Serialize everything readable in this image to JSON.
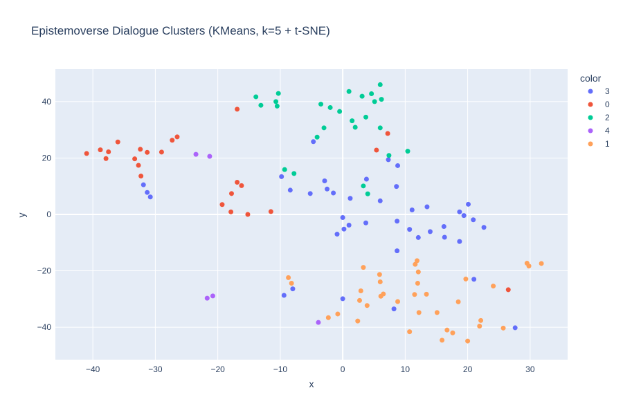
{
  "chart_data": {
    "type": "scatter",
    "title": "Epistemoverse Dialogue Clusters (KMeans, k=5 + t-SNE)",
    "xlabel": "x",
    "ylabel": "y",
    "xlim": [
      -46,
      36
    ],
    "ylim": [
      -51.5,
      51.5
    ],
    "x_ticks": [
      -40,
      -30,
      -20,
      -10,
      0,
      10,
      20,
      30
    ],
    "x_tick_labels": [
      "−40",
      "−30",
      "−20",
      "−10",
      "0",
      "10",
      "20",
      "30"
    ],
    "y_ticks": [
      -40,
      -20,
      0,
      20,
      40
    ],
    "y_tick_labels": [
      "−40",
      "−20",
      "0",
      "20",
      "40"
    ],
    "grid": true,
    "legend": {
      "title": "color",
      "placement": "right"
    },
    "colors": {
      "plot_background": "#E5ECF6",
      "grid": "#ffffff",
      "text": "#2a3f5f"
    },
    "series": [
      {
        "name": "3",
        "color": "#636EFA",
        "points": [
          [
            -31.9,
            10.5
          ],
          [
            -31.3,
            7.8
          ],
          [
            -30.8,
            6.2
          ],
          [
            -4.7,
            25.8
          ],
          [
            -9.8,
            13.4
          ],
          [
            -8.4,
            8.6
          ],
          [
            -2.9,
            11.9
          ],
          [
            -2.5,
            9.0
          ],
          [
            -1.5,
            7.6
          ],
          [
            -5.2,
            7.4
          ],
          [
            3.8,
            12.5
          ],
          [
            1.2,
            5.7
          ],
          [
            8.6,
            9.9
          ],
          [
            6.0,
            4.8
          ],
          [
            7.3,
            19.4
          ],
          [
            8.8,
            17.3
          ],
          [
            0.0,
            -1.1
          ],
          [
            1.0,
            -3.8
          ],
          [
            0.2,
            -5.2
          ],
          [
            -0.9,
            -7.0
          ],
          [
            3.7,
            -3.0
          ],
          [
            8.7,
            -2.4
          ],
          [
            10.7,
            -5.3
          ],
          [
            12.1,
            -8.2
          ],
          [
            11.1,
            1.6
          ],
          [
            13.5,
            2.7
          ],
          [
            14.0,
            -6.1
          ],
          [
            16.2,
            -4.3
          ],
          [
            16.3,
            -8.1
          ],
          [
            18.7,
            -9.6
          ],
          [
            18.7,
            0.9
          ],
          [
            19.4,
            -0.4
          ],
          [
            20.1,
            3.6
          ],
          [
            20.9,
            -1.9
          ],
          [
            22.6,
            -4.6
          ],
          [
            8.7,
            -12.9
          ],
          [
            21.0,
            -23.0
          ],
          [
            -9.4,
            -28.7
          ],
          [
            -8.0,
            -26.4
          ],
          [
            0.0,
            -29.9
          ],
          [
            8.2,
            -33.5
          ],
          [
            27.6,
            -40.2
          ]
        ]
      },
      {
        "name": "0",
        "color": "#EF553B",
        "points": [
          [
            -41.0,
            21.6
          ],
          [
            -38.8,
            22.9
          ],
          [
            -37.9,
            19.8
          ],
          [
            -37.5,
            22.2
          ],
          [
            -36.0,
            25.7
          ],
          [
            -33.3,
            19.7
          ],
          [
            -32.4,
            23.1
          ],
          [
            -32.7,
            17.4
          ],
          [
            -32.3,
            13.6
          ],
          [
            -31.3,
            22.0
          ],
          [
            -29.0,
            22.1
          ],
          [
            -27.3,
            26.3
          ],
          [
            -26.5,
            27.5
          ],
          [
            -16.9,
            37.3
          ],
          [
            -16.9,
            11.4
          ],
          [
            -16.2,
            10.2
          ],
          [
            -17.8,
            7.4
          ],
          [
            -19.3,
            3.5
          ],
          [
            -17.9,
            0.9
          ],
          [
            -15.2,
            0.0
          ],
          [
            -11.5,
            1.0
          ],
          [
            7.2,
            28.7
          ],
          [
            5.4,
            22.8
          ],
          [
            26.5,
            -26.7
          ]
        ]
      },
      {
        "name": "2",
        "color": "#00CC96",
        "points": [
          [
            -13.9,
            41.7
          ],
          [
            -13.1,
            38.7
          ],
          [
            -10.7,
            40.0
          ],
          [
            -10.3,
            42.9
          ],
          [
            -10.5,
            38.4
          ],
          [
            -3.5,
            39.1
          ],
          [
            -2.0,
            37.9
          ],
          [
            -0.5,
            36.5
          ],
          [
            1.0,
            43.6
          ],
          [
            3.1,
            41.9
          ],
          [
            4.6,
            42.8
          ],
          [
            5.1,
            40.0
          ],
          [
            6.0,
            46.0
          ],
          [
            6.2,
            40.8
          ],
          [
            1.5,
            33.2
          ],
          [
            3.7,
            34.5
          ],
          [
            2.0,
            30.9
          ],
          [
            6.0,
            30.7
          ],
          [
            -3.0,
            30.7
          ],
          [
            -4.1,
            27.4
          ],
          [
            7.4,
            20.9
          ],
          [
            10.4,
            22.4
          ],
          [
            -9.3,
            15.9
          ],
          [
            -7.8,
            14.5
          ],
          [
            3.3,
            10.1
          ],
          [
            4.0,
            7.3
          ]
        ]
      },
      {
        "name": "4",
        "color": "#AB63FA",
        "points": [
          [
            -23.5,
            21.3
          ],
          [
            -21.3,
            20.6
          ],
          [
            -21.7,
            -29.7
          ],
          [
            -20.8,
            -28.9
          ],
          [
            -3.9,
            -38.3
          ]
        ]
      },
      {
        "name": "1",
        "color": "#FFA15A",
        "points": [
          [
            -8.7,
            -22.4
          ],
          [
            -8.2,
            -24.4
          ],
          [
            3.3,
            -18.8
          ],
          [
            5.9,
            -21.3
          ],
          [
            6.0,
            -23.9
          ],
          [
            2.9,
            -27.1
          ],
          [
            2.7,
            -30.5
          ],
          [
            3.9,
            -32.3
          ],
          [
            6.1,
            -29.0
          ],
          [
            6.5,
            -28.2
          ],
          [
            8.8,
            -30.9
          ],
          [
            11.9,
            -16.4
          ],
          [
            11.6,
            -17.7
          ],
          [
            12.1,
            -20.4
          ],
          [
            12.0,
            -24.4
          ],
          [
            11.5,
            -28.4
          ],
          [
            12.2,
            -34.8
          ],
          [
            13.4,
            -28.3
          ],
          [
            15.1,
            -34.8
          ],
          [
            10.7,
            -41.6
          ],
          [
            16.7,
            -41.0
          ],
          [
            15.9,
            -44.6
          ],
          [
            17.6,
            -42.0
          ],
          [
            18.5,
            -31.0
          ],
          [
            19.7,
            -22.9
          ],
          [
            20.0,
            -44.9
          ],
          [
            21.9,
            -39.6
          ],
          [
            22.1,
            -37.6
          ],
          [
            24.1,
            -25.4
          ],
          [
            25.7,
            -40.3
          ],
          [
            29.5,
            -17.3
          ],
          [
            29.8,
            -18.3
          ],
          [
            31.8,
            -17.4
          ],
          [
            -2.3,
            -36.6
          ],
          [
            -0.8,
            -35.3
          ],
          [
            2.4,
            -37.8
          ]
        ]
      }
    ]
  }
}
